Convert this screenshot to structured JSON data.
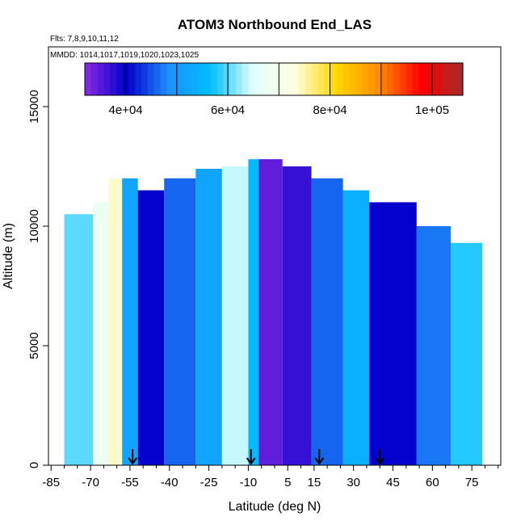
{
  "chart_data": {
    "type": "heatmap",
    "title": "ATOM3 Northbound End_LAS",
    "flights_label": "Flts: 7,8,9,10,11,12",
    "dates_label": "MMDD: 1014,1017,1019,1020,1023,1025",
    "xlabel": "Latitude (deg N)",
    "ylabel": "Altitude (m)",
    "xlim": [
      -86,
      86
    ],
    "ylim": [
      0,
      17500
    ],
    "x_ticks": [
      -85,
      -70,
      -55,
      -40,
      -25,
      -10,
      5,
      15,
      30,
      45,
      60,
      75
    ],
    "x_minor_ticks": [
      -80,
      -75,
      -65,
      -60,
      -50,
      -45,
      -35,
      -30,
      -20,
      -15,
      -5,
      0,
      10,
      20,
      25,
      35,
      40,
      50,
      55,
      65,
      70,
      80,
      85
    ],
    "y_ticks": [
      0,
      5000,
      10000,
      15000
    ],
    "grid": false,
    "colorbar": {
      "min": 32000,
      "max": 106000,
      "ticks": [
        40000,
        60000,
        80000,
        100000
      ],
      "tick_labels": [
        "4e+04",
        "6e+04",
        "8e+04",
        "1e+05"
      ],
      "divisions": [
        50000,
        70000,
        90000
      ],
      "colors": [
        "#8a2be2",
        "#0000cd",
        "#1e90ff",
        "#00bfff",
        "#e0ffff",
        "#ffffe0",
        "#ffd700",
        "#ff8c00",
        "#ff0000",
        "#a52a2a"
      ],
      "position": "top"
    },
    "profile_markers": [
      -54,
      -9,
      17,
      40
    ],
    "columns": [
      {
        "x0": -80,
        "x1": -69,
        "top": 10500,
        "value": 60000
      },
      {
        "x0": -69,
        "x1": -63,
        "top": 11000,
        "value": 68000
      },
      {
        "x0": -63,
        "x1": -58,
        "top": 12000,
        "value": 74000
      },
      {
        "x0": -58,
        "x1": -52,
        "top": 12000,
        "value": 52000
      },
      {
        "x0": -52,
        "x1": -42,
        "top": 11500,
        "value": 40000
      },
      {
        "x0": -42,
        "x1": -30,
        "top": 12000,
        "value": 46000
      },
      {
        "x0": -30,
        "x1": -20,
        "top": 12400,
        "value": 52000
      },
      {
        "x0": -20,
        "x1": -10,
        "top": 12500,
        "value": 64000
      },
      {
        "x0": -10,
        "x1": -6,
        "top": 12800,
        "value": 56000
      },
      {
        "x0": -6,
        "x1": 3,
        "top": 12800,
        "value": 34500
      },
      {
        "x0": 3,
        "x1": 14,
        "top": 12500,
        "value": 37000
      },
      {
        "x0": 14,
        "x1": 26,
        "top": 12000,
        "value": 46000
      },
      {
        "x0": 26,
        "x1": 36,
        "top": 11500,
        "value": 54000
      },
      {
        "x0": 36,
        "x1": 54,
        "top": 11000,
        "value": 40000
      },
      {
        "x0": 54,
        "x1": 67,
        "top": 10000,
        "value": 47000
      },
      {
        "x0": 67,
        "x1": 79,
        "top": 9300,
        "value": 58000
      }
    ]
  }
}
